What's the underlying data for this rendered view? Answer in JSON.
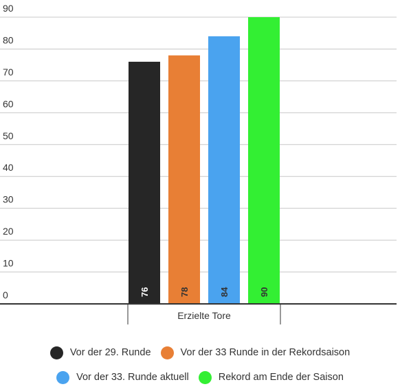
{
  "chart_data": {
    "type": "bar",
    "title": "",
    "xlabel": "",
    "ylabel": "",
    "categories": [
      "Erzielte Tore"
    ],
    "ylim": [
      0,
      90
    ],
    "yticks": [
      0,
      10,
      20,
      30,
      40,
      50,
      60,
      70,
      80,
      90
    ],
    "grid": true,
    "legend_position": "bottom",
    "series": [
      {
        "name": "Vor der 29. Runde",
        "values": [
          76
        ],
        "color": "#262626",
        "label": "76",
        "label_color": "#ffffff"
      },
      {
        "name": "Vor der 33 Runde in der Rekordsaison",
        "values": [
          78
        ],
        "color": "#e87f35",
        "label": "78",
        "label_color": "#333333"
      },
      {
        "name": "Vor der 33. Runde aktuell",
        "values": [
          84
        ],
        "color": "#4aa3ef",
        "label": "84",
        "label_color": "#333333"
      },
      {
        "name": "Rekord am Ende der Saison",
        "values": [
          90
        ],
        "color": "#33ef33",
        "label": "90",
        "label_color": "#333333"
      }
    ]
  },
  "legend_rows": [
    [
      0,
      1
    ],
    [
      2,
      3
    ]
  ]
}
